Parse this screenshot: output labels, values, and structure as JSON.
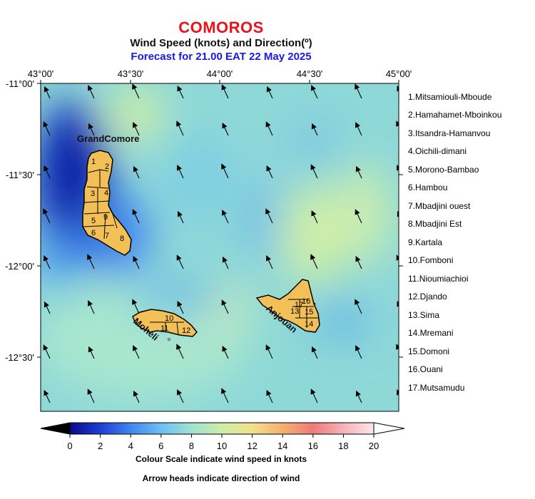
{
  "header": {
    "country": "COMOROS",
    "subtitle": "Wind Speed (knots) and Direction(º)",
    "forecast": "Forecast for  21.00 EAT 22 May 2025"
  },
  "axes": {
    "lon_ticks": [
      "43°00'",
      "43°30'",
      "44°00'",
      "44°30'",
      "45°00'"
    ],
    "lat_ticks": [
      "-11°00'",
      "-11°30'",
      "-12°00'",
      "-12°30'"
    ]
  },
  "islands": [
    {
      "name": "GrandComore"
    },
    {
      "name": "Moheli"
    },
    {
      "name": "Anjouan"
    }
  ],
  "districts": [
    "1.Mitsamiouli-Mboude",
    "2.Hamahamet-Mboinkou",
    "3.Itsandra-Hamanvou",
    "4.Oichili-dimani",
    "5.Morono-Bambao",
    "6.Hambou",
    "7.Mbadjini ouest",
    "8.Mbadjini Est",
    "9.Kartala",
    "10.Fomboni",
    "11.Nioumiachioi",
    "12.Djando",
    "13.Sima",
    "14.Mremani",
    "15.Domoni",
    "16.Ouani",
    "17.Mutsamudu"
  ],
  "district_numbers": [
    "1",
    "2",
    "3",
    "4",
    "5",
    "6",
    "7",
    "8",
    "9",
    "10",
    "11",
    "12",
    "13",
    "14",
    "15",
    "16",
    "17"
  ],
  "colorbar": {
    "min": 0,
    "max": 20,
    "ticks": [
      "0",
      "2",
      "4",
      "6",
      "8",
      "10",
      "12",
      "14",
      "16",
      "18",
      "20"
    ],
    "stops": [
      "#0a0a8c",
      "#1e3fd0",
      "#3f86f0",
      "#6cc0f2",
      "#9fe2cf",
      "#cdeea8",
      "#f2e08c",
      "#f5b070",
      "#f07a78",
      "#f5b3b8",
      "#fbe6e8",
      "#ffffff"
    ],
    "caption": "Colour Scale indicate wind speed in knots"
  },
  "footnote": "Arrow heads indicate direction of wind",
  "wind": {
    "dominant_direction": "southeast (arrows pointing north-northwest)",
    "low_speed_zone": "west of GrandComore (~2-4 knots)",
    "typical_speed_knots": "8-11"
  }
}
